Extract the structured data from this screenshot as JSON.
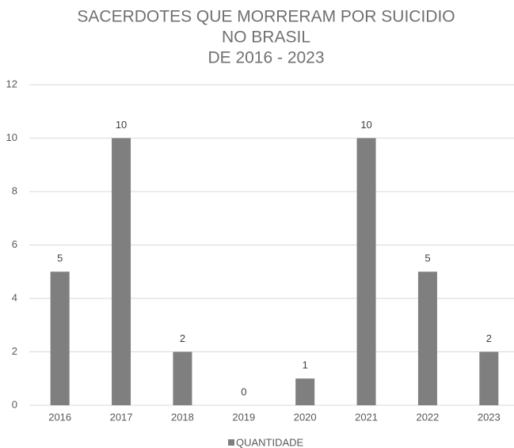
{
  "chart_data": {
    "type": "bar",
    "title": [
      "SACERDOTES QUE MORRERAM POR SUICIDIO",
      "NO BRASIL",
      "DE 2016 - 2023"
    ],
    "categories": [
      "2016",
      "2017",
      "2018",
      "2019",
      "2020",
      "2021",
      "2022",
      "2023"
    ],
    "series": [
      {
        "name": "QUANTIDADE",
        "color": "#7f7f7f",
        "values": [
          5,
          10,
          2,
          0,
          1,
          10,
          5,
          2
        ]
      }
    ],
    "ylim": [
      0,
      12
    ],
    "yticks": [
      0,
      2,
      4,
      6,
      8,
      10,
      12
    ],
    "grid": true,
    "legend": "bottom"
  }
}
